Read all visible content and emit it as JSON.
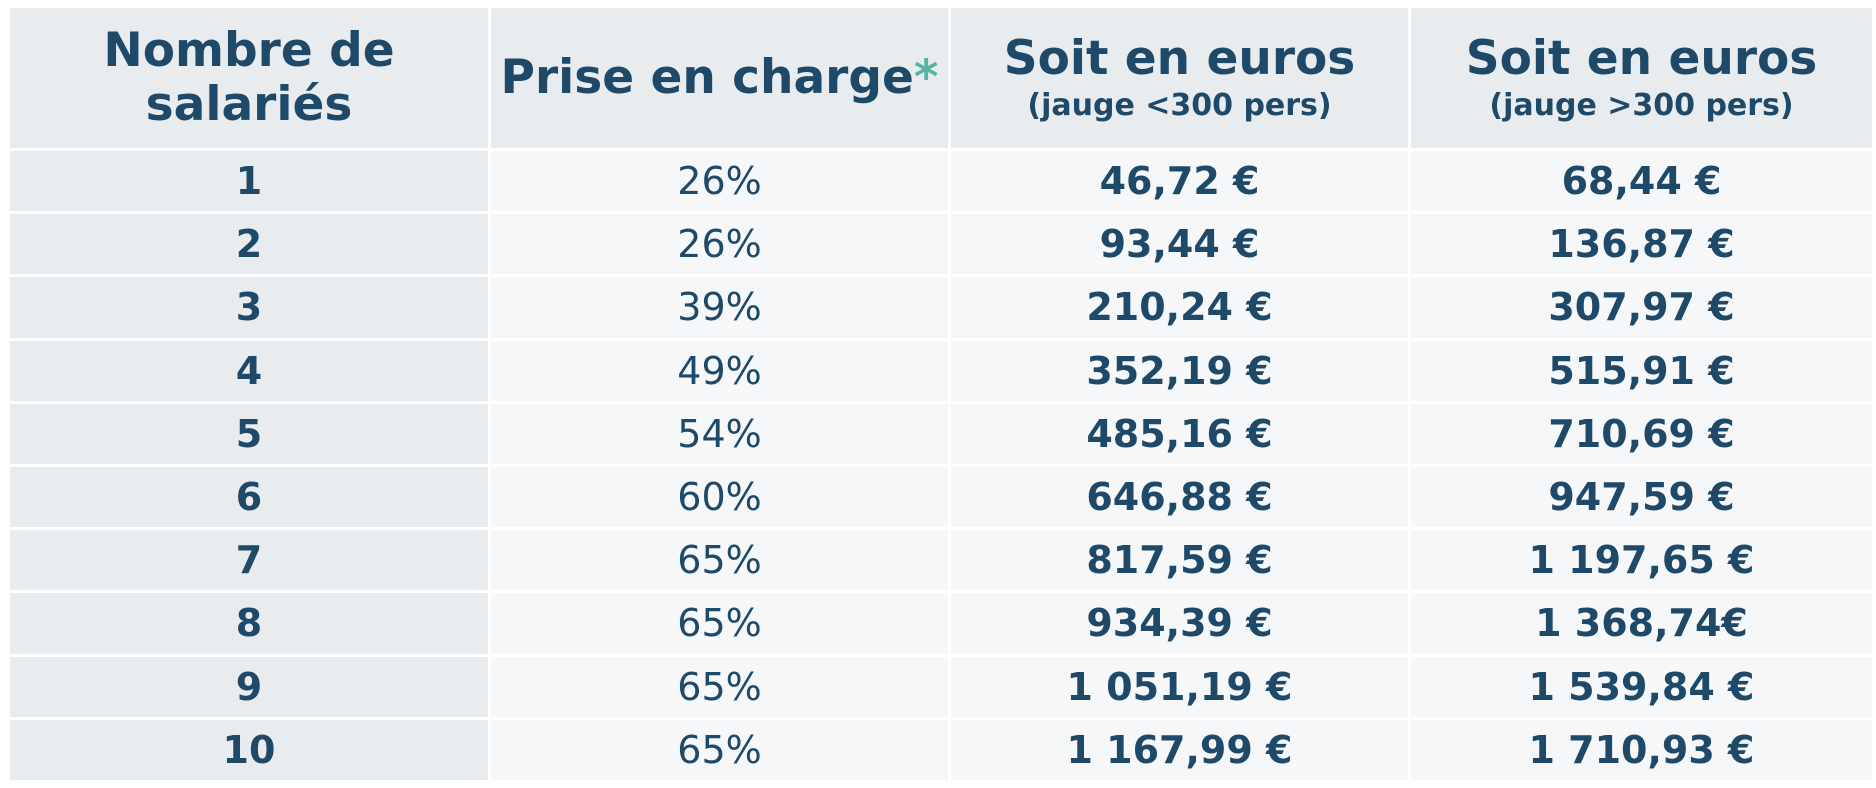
{
  "headers": {
    "employees": {
      "line1": "Nombre de",
      "line2": "salariés"
    },
    "coverage": {
      "label": "Prise en charge",
      "asterisk": "*"
    },
    "euros_small": {
      "label": "Soit en euros",
      "note": "(jauge <300 pers)"
    },
    "euros_large": {
      "label": "Soit en euros",
      "note": "(jauge >300 pers)"
    }
  },
  "rows": [
    {
      "employees": "1",
      "coverage": "26%",
      "euros_small": "46,72 €",
      "euros_large": "68,44 €"
    },
    {
      "employees": "2",
      "coverage": "26%",
      "euros_small": "93,44 €",
      "euros_large": "136,87 €"
    },
    {
      "employees": "3",
      "coverage": "39%",
      "euros_small": "210,24 €",
      "euros_large": "307,97 €"
    },
    {
      "employees": "4",
      "coverage": "49%",
      "euros_small": "352,19 €",
      "euros_large": "515,91 €"
    },
    {
      "employees": "5",
      "coverage": "54%",
      "euros_small": "485,16 €",
      "euros_large": "710,69 €"
    },
    {
      "employees": "6",
      "coverage": "60%",
      "euros_small": "646,88 €",
      "euros_large": "947,59 €"
    },
    {
      "employees": "7",
      "coverage": "65%",
      "euros_small": "817,59 €",
      "euros_large": "1 197,65 €"
    },
    {
      "employees": "8",
      "coverage": "65%",
      "euros_small": "934,39 €",
      "euros_large": "1 368,74€"
    },
    {
      "employees": "9",
      "coverage": "65%",
      "euros_small": "1 051,19 €",
      "euros_large": "1 539,84 €"
    },
    {
      "employees": "10",
      "coverage": "65%",
      "euros_small": "1 167,99 €",
      "euros_large": "1 710,93 €"
    }
  ],
  "colors": {
    "text": "#1f4968",
    "asterisk": "#5ab2a3",
    "header_bg": "#e9ecef",
    "cell_bg": "#f5f7f8"
  }
}
